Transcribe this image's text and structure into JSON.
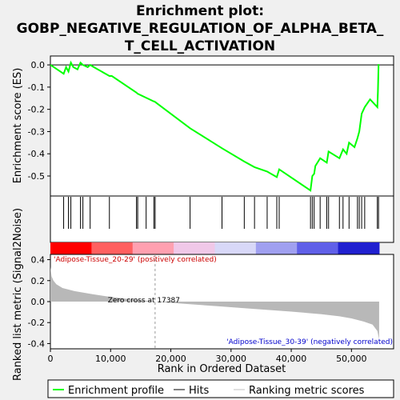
{
  "chart_data": {
    "type": "line",
    "title": [
      "Enrichment plot:",
      "GOBP_NEGATIVE_REGULATION_OF_ALPHA_BETA_",
      "T_CELL_ACTIVATION"
    ],
    "top_panel": {
      "ylabel": "Enrichment score (ES)",
      "yticks": [
        "0.0",
        "-0.1",
        "-0.2",
        "-0.3",
        "-0.4",
        "-0.5"
      ],
      "ytick_values": [
        0.0,
        -0.1,
        -0.2,
        -0.3,
        -0.4,
        -0.5
      ],
      "ylim": [
        -0.59,
        0.04
      ],
      "series": [
        {
          "name": "Enrichment profile",
          "color": "#00ff00",
          "x": [
            0,
            2200,
            2600,
            3000,
            3400,
            3800,
            4500,
            5000,
            5400,
            6200,
            6600,
            7200,
            9800,
            10200,
            14300,
            14500,
            17200,
            17300,
            23200,
            28500,
            32200,
            33900,
            36000,
            37600,
            38000,
            43200,
            43500,
            43800,
            44000,
            44800,
            45900,
            46200,
            48000,
            48600,
            49200,
            49600,
            50500,
            51000,
            51300,
            51500,
            51700,
            52200,
            53100,
            54300,
            54400,
            54450,
            54500,
            54600
          ],
          "y": [
            0.0,
            -0.04,
            -0.01,
            -0.03,
            0.01,
            -0.01,
            -0.02,
            0.01,
            0.0,
            -0.01,
            0.0,
            -0.01,
            -0.05,
            -0.05,
            -0.125,
            -0.13,
            -0.165,
            -0.165,
            -0.285,
            -0.375,
            -0.435,
            -0.46,
            -0.48,
            -0.505,
            -0.47,
            -0.565,
            -0.5,
            -0.49,
            -0.455,
            -0.42,
            -0.44,
            -0.39,
            -0.42,
            -0.38,
            -0.4,
            -0.35,
            -0.37,
            -0.33,
            -0.3,
            -0.26,
            -0.22,
            -0.19,
            -0.155,
            -0.19,
            -0.12,
            -0.06,
            0.0,
            0.0
          ]
        }
      ]
    },
    "hits_panel": {
      "hit_positions": [
        2200,
        3000,
        3400,
        5000,
        5400,
        6600,
        9800,
        14300,
        14500,
        15900,
        17200,
        17400,
        23200,
        28500,
        32200,
        33900,
        36000,
        37600,
        38000,
        43200,
        43500,
        43800,
        44800,
        45900,
        46200,
        48000,
        48600,
        49600,
        51000,
        51300,
        51700,
        52200,
        54300,
        54500
      ]
    },
    "bottom_panel": {
      "ylabel": "Ranked list metric (Signal2Noise)",
      "yticks": [
        "0.4",
        "0.2",
        "0.0",
        "-0.2",
        "-0.4"
      ],
      "ytick_values": [
        0.4,
        0.2,
        0.0,
        -0.2,
        -0.4
      ],
      "ylim": [
        -0.45,
        0.45
      ],
      "metric_x": [
        0,
        200,
        500,
        1000,
        2000,
        4000,
        7000,
        10000,
        13000,
        17387,
        22000,
        28000,
        34000,
        40000,
        45000,
        48000,
        50000,
        52000,
        53500,
        54300,
        54600
      ],
      "metric_y": [
        0.33,
        0.24,
        0.2,
        0.165,
        0.13,
        0.1,
        0.07,
        0.045,
        0.025,
        0.0,
        -0.02,
        -0.045,
        -0.07,
        -0.095,
        -0.12,
        -0.14,
        -0.16,
        -0.19,
        -0.22,
        -0.28,
        -0.36
      ],
      "zero_cross": 17387,
      "annotations": {
        "positive": "'Adipose-Tissue_20-29' (positively correlated)",
        "negative": "'Adipose-Tissue_30-39' (negatively correlated)",
        "zero_cross_label": "Zero cross at 17387"
      }
    },
    "xlabel": "Rank in Ordered Dataset",
    "xlim": [
      0,
      57000
    ],
    "xticks": [
      "0",
      "10,000",
      "20,000",
      "30,000",
      "40,000",
      "50,000"
    ],
    "xtick_values": [
      0,
      10000,
      20000,
      30000,
      40000,
      50000
    ],
    "heatmap_colors": [
      "#ff0000",
      "#ff6060",
      "#ffa0b0",
      "#f0c8e8",
      "#d8d8f8",
      "#a0a0f0",
      "#6060e8",
      "#2020d0"
    ],
    "legend": [
      {
        "label": "Enrichment profile",
        "color": "#00ff00"
      },
      {
        "label": "Hits",
        "color": "#000000"
      },
      {
        "label": "Ranking metric scores",
        "color": "#c0c0c0"
      }
    ],
    "legend_position": "bottom"
  }
}
